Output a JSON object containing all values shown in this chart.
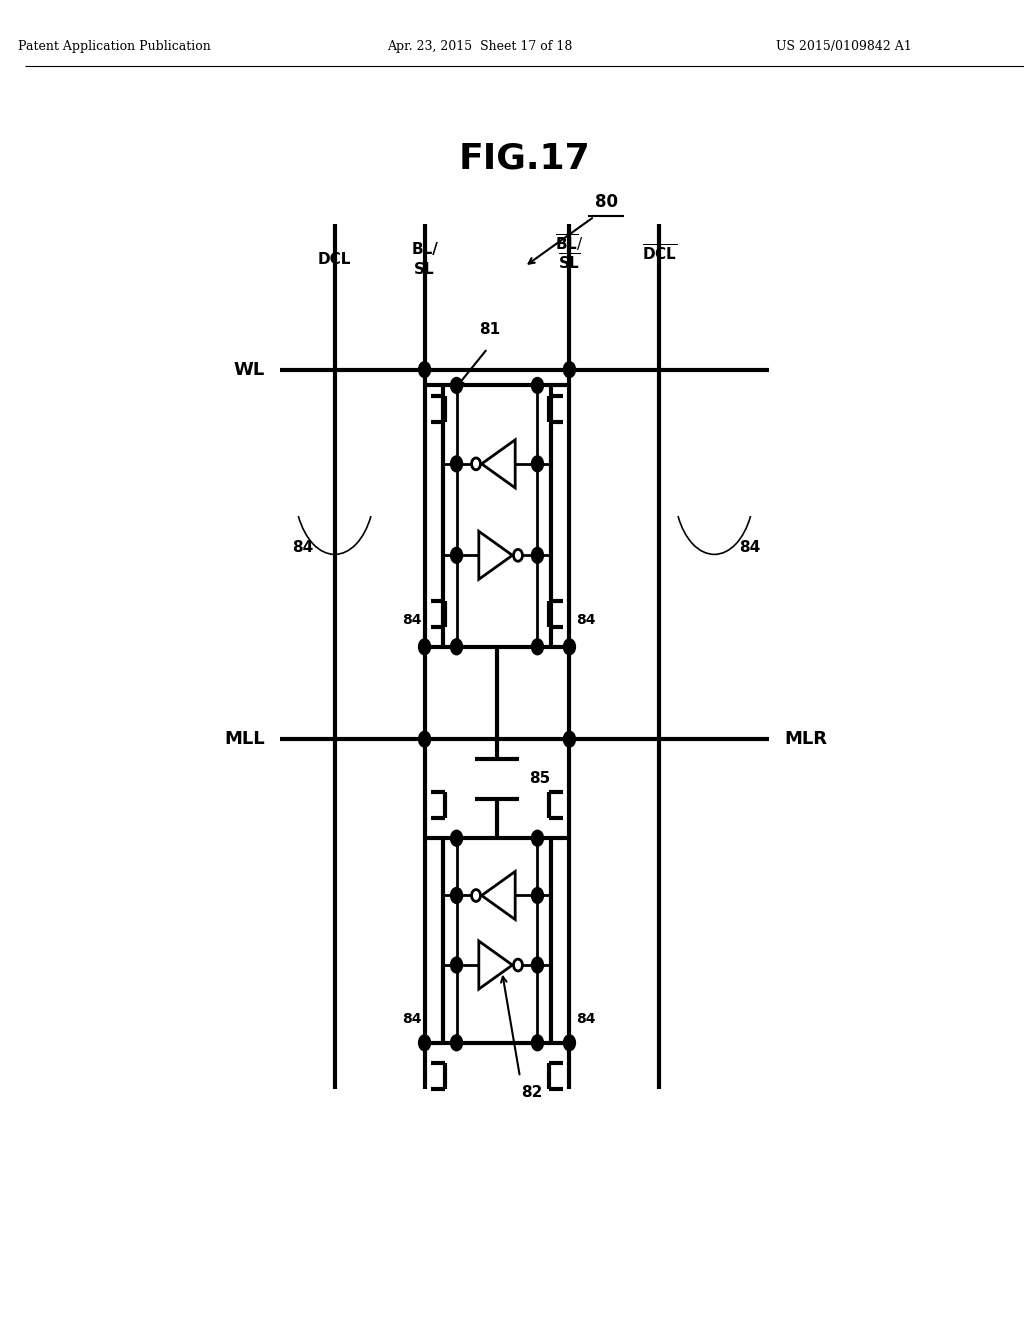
{
  "header_left": "Patent Application Publication",
  "header_mid": "Apr. 23, 2015  Sheet 17 of 18",
  "header_right": "US 2015/0109842 A1",
  "title": "FIG.17",
  "bg_color": "#ffffff",
  "xL1": 0.31,
  "xL2": 0.4,
  "xR1": 0.545,
  "xR2": 0.635,
  "yT": 0.83,
  "yB": 0.175,
  "yWL": 0.72,
  "yML": 0.44,
  "tlw": 3.0,
  "nlw": 2.0
}
